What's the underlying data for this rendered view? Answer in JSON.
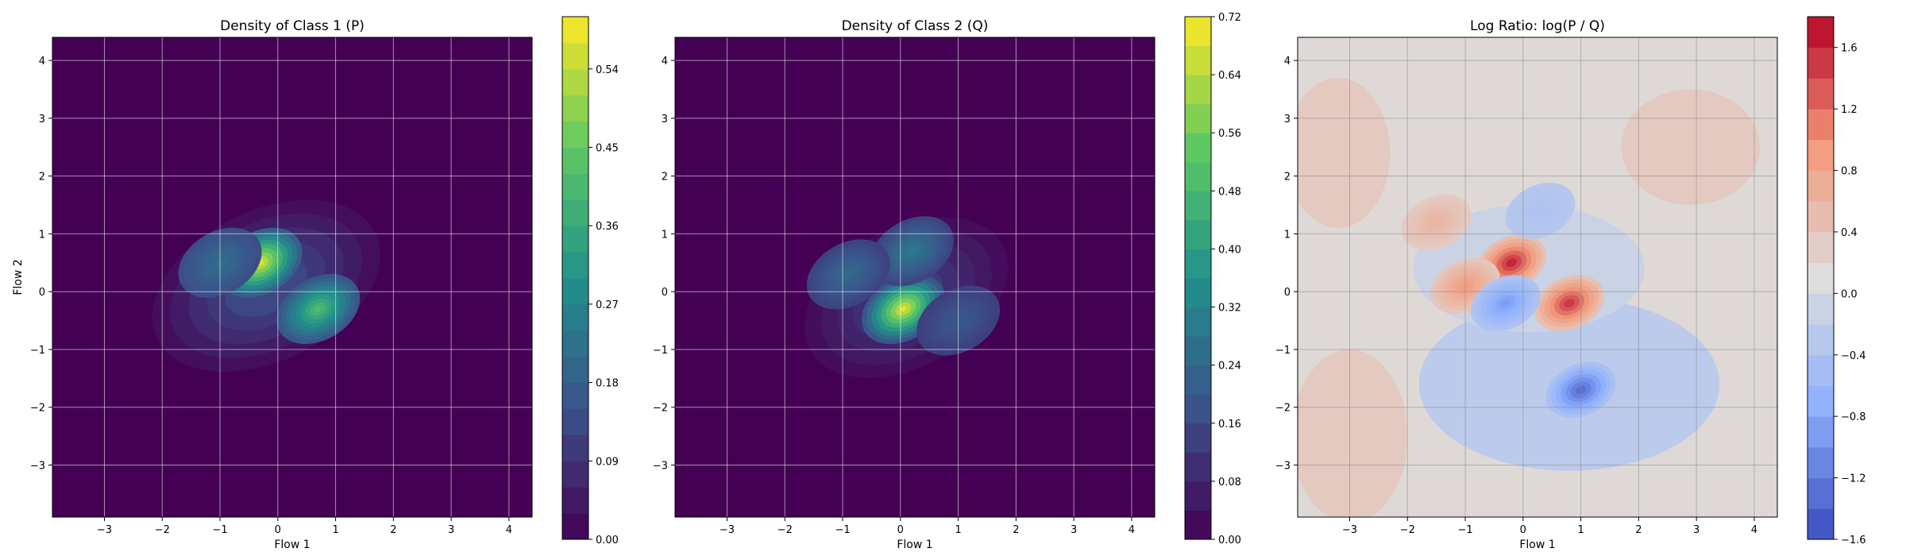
{
  "chart_data": [
    {
      "type": "heatmap",
      "title": "Density of Class 1 (P)",
      "xlabel": "Flow 1",
      "ylabel": "Flow 2",
      "xlim": [
        -3.9,
        4.4
      ],
      "ylim": [
        -3.9,
        4.4
      ],
      "xticks": [
        -3,
        -2,
        -1,
        0,
        1,
        2,
        3,
        4
      ],
      "yticks": [
        -3,
        -2,
        -1,
        0,
        1,
        2,
        3,
        4
      ],
      "grid": true,
      "colormap": "viridis",
      "colorbar": {
        "min": 0.0,
        "max": 0.6,
        "ticks": [
          0.0,
          0.09,
          0.18,
          0.27,
          0.36,
          0.45,
          0.54
        ],
        "levels": 20
      },
      "modes": [
        {
          "x": -0.3,
          "y": 0.5,
          "peak": 0.58
        },
        {
          "x": 0.7,
          "y": -0.3,
          "peak": 0.42
        },
        {
          "x": -1.0,
          "y": 0.5,
          "peak": 0.22
        }
      ]
    },
    {
      "type": "heatmap",
      "title": "Density of Class 2 (Q)",
      "xlabel": "Flow 1",
      "ylabel": "",
      "xlim": [
        -3.9,
        4.4
      ],
      "ylim": [
        -3.9,
        4.4
      ],
      "xticks": [
        -3,
        -2,
        -1,
        0,
        1,
        2,
        3,
        4
      ],
      "yticks": [
        -3,
        -2,
        -1,
        0,
        1,
        2,
        3,
        4
      ],
      "grid": true,
      "colormap": "viridis",
      "colorbar": {
        "min": 0.0,
        "max": 0.72,
        "ticks": [
          0.0,
          0.08,
          0.16,
          0.24,
          0.32,
          0.4,
          0.48,
          0.56,
          0.64,
          0.72
        ],
        "levels": 18
      },
      "modes": [
        {
          "x": 0.05,
          "y": -0.3,
          "peak": 0.7
        },
        {
          "x": 0.2,
          "y": 0.7,
          "peak": 0.3
        },
        {
          "x": -0.9,
          "y": 0.3,
          "peak": 0.25
        },
        {
          "x": 1.0,
          "y": -0.5,
          "peak": 0.2
        }
      ]
    },
    {
      "type": "heatmap",
      "title": "Log Ratio: log(P / Q)",
      "xlabel": "Flow 1",
      "ylabel": "",
      "xlim": [
        -3.9,
        4.4
      ],
      "ylim": [
        -3.9,
        4.4
      ],
      "xticks": [
        -3,
        -2,
        -1,
        0,
        1,
        2,
        3,
        4
      ],
      "yticks": [
        -3,
        -2,
        -1,
        0,
        1,
        2,
        3,
        4
      ],
      "grid": true,
      "colormap": "coolwarm",
      "colorbar": {
        "min": -1.6,
        "max": 1.8,
        "ticks": [
          -1.6,
          -1.2,
          -0.8,
          -0.4,
          0.0,
          0.4,
          0.8,
          1.2,
          1.6
        ],
        "tick_labels": [
          "−1.6",
          "−1.2",
          "−0.8",
          "−0.4",
          "0.0",
          "0.4",
          "0.8",
          "1.2",
          "1.6"
        ],
        "levels": 17
      },
      "modes": [
        {
          "x": -0.2,
          "y": 0.5,
          "value": 1.6
        },
        {
          "x": 0.8,
          "y": -0.2,
          "value": 1.5
        },
        {
          "x": -1.0,
          "y": 0.1,
          "value": 0.9
        },
        {
          "x": -1.5,
          "y": 1.2,
          "value": 0.6
        },
        {
          "x": -0.3,
          "y": -0.2,
          "value": -0.9
        },
        {
          "x": 1.0,
          "y": -1.7,
          "value": -1.3
        },
        {
          "x": 0.3,
          "y": 1.4,
          "value": -0.4
        }
      ]
    }
  ],
  "tick_text": [
    "−3",
    "−2",
    "−1",
    "0",
    "1",
    "2",
    "3",
    "4"
  ]
}
